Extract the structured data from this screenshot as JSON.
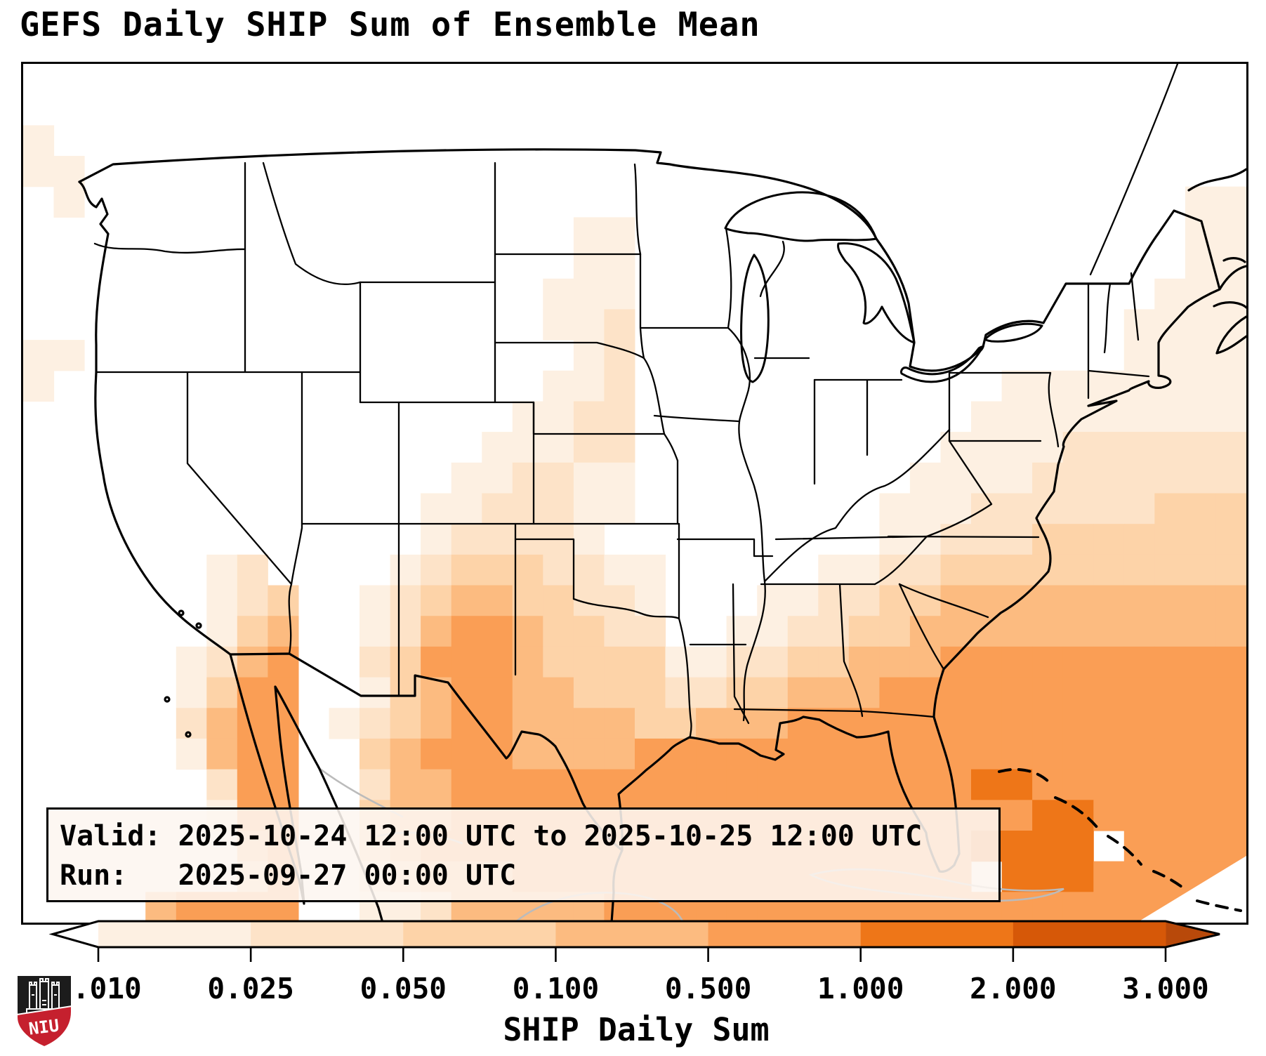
{
  "title": "GEFS Daily SHIP Sum of Ensemble Mean",
  "info_box": {
    "valid_line": "Valid: 2025-10-24 12:00 UTC to 2025-10-25 12:00 UTC",
    "run_line": "Run:   2025-09-27 00:00 UTC"
  },
  "colorbar": {
    "label": "SHIP Daily Sum",
    "ticks": [
      "0.010",
      "0.025",
      "0.050",
      "0.100",
      "0.500",
      "1.000",
      "2.000",
      "3.000"
    ],
    "boundaries": [
      0.01,
      0.025,
      0.05,
      0.1,
      0.5,
      1.0,
      2.0,
      3.0
    ],
    "segment_colors": [
      "#fdf0e2",
      "#fde3c8",
      "#fdd3a8",
      "#fcbb80",
      "#fa9e55",
      "#ee7618",
      "#d65808"
    ],
    "under_color": "#ffffff",
    "over_color": "#b8490a",
    "outline_color": "#000000",
    "extend": "both"
  },
  "map": {
    "land_color": "#ffffff",
    "coast_color": "#000000",
    "state_border_color": "#000000",
    "secondary_border_color": "#bbbbbb",
    "shading": {
      "palette": {
        "1": "#fdf0e2",
        "2": "#fde3c8",
        "3": "#fdd3a8",
        "4": "#fcbb80",
        "5": "#fa9e55",
        "6": "#ee7618",
        "7": "#d65808"
      },
      "grid_cols": 40,
      "grid_rows": 28,
      "rows": [
        "........................................",
        "........................................",
        "1.......................................",
        "11......................................",
        ".1....................................11",
        "..................11..................11",
        "..................11..................11",
        ".................111.................111",
        ".................112................1111",
        "11................12................1111",
        "1................112............11111111",
        "................1122...........111111111",
        "...............11122..........1111222222",
        "..............112211.........11112222222",
        ".............1122211........111222222333",
        ".............122221.........112223333333",
        "......12....123332211.....11223333333333",
        "......123..1234433221...1122334444444444",
        "......134..1245543322..11223344444444444",
        ".....1245..23555433331122334445555555555",
        ".....1355..13455443332233444555555555555",
        ".....2455.123455444433444555555555555555",
        ".....1455..34555444455555555555555555555",
        "......255..24455555555555555555665555555",
        "......155..34455555555555555555556655555",
        ".......45..345555555555555555556666 5555",
        ".......35..23444555555555555555 66655555",
        "....45555..11244444555555555555555555555"
      ]
    }
  },
  "logo": {
    "text": "NIU",
    "shield_color": "#1c1c1c",
    "band_color": "#c5202e",
    "castle_color": "#ffffff"
  }
}
